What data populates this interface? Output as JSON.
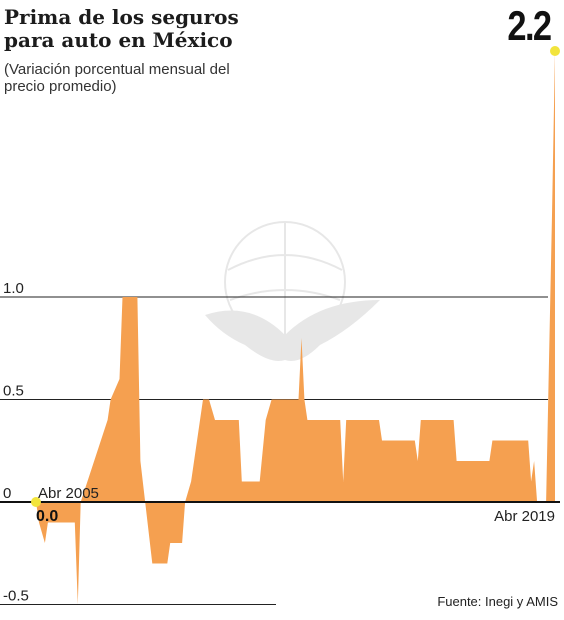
{
  "header": {
    "title": "Prima de los seguros para auto en México",
    "subtitle": "(Variación porcentual mensual del precio promedio)",
    "last_value": "2.2"
  },
  "footer": {
    "source": "Fuente: Inegi y AMIS"
  },
  "colors": {
    "fill": "#F5A050",
    "marker": "#F2E43C",
    "grid": "#222222",
    "axis": "#111111"
  },
  "chart_data": {
    "type": "area",
    "ylim": [
      -0.5,
      2.2
    ],
    "yticks": [
      {
        "value": 1.0,
        "label": "1.0"
      },
      {
        "value": 0.5,
        "label": "0.5"
      },
      {
        "value": 0,
        "label": "0"
      },
      {
        "value": -0.5,
        "label": "-0.5"
      }
    ],
    "start_label": "Abr 2005",
    "start_value_label": "0.0",
    "end_label": "Abr 2019",
    "series": [
      {
        "points": [
          [
            2005.25,
            0
          ],
          [
            2005.333,
            -0.1
          ],
          [
            2005.5,
            -0.2
          ],
          [
            2005.583,
            -0.1
          ],
          [
            2006.333,
            -0.1
          ],
          [
            2006.417,
            -0.5
          ],
          [
            2006.5,
            0
          ],
          [
            2007.25,
            0.4
          ],
          [
            2007.333,
            0.5
          ],
          [
            2007.583,
            0.6
          ],
          [
            2007.667,
            1.0
          ],
          [
            2008.083,
            1.0
          ],
          [
            2008.167,
            0.2
          ],
          [
            2008.5,
            -0.3
          ],
          [
            2008.917,
            -0.3
          ],
          [
            2009.0,
            -0.2
          ],
          [
            2009.333,
            -0.2
          ],
          [
            2009.417,
            0
          ],
          [
            2009.583,
            0.1
          ],
          [
            2009.917,
            0.5
          ],
          [
            2010.083,
            0.5
          ],
          [
            2010.25,
            0.4
          ],
          [
            2010.917,
            0.4
          ],
          [
            2011.0,
            0.1
          ],
          [
            2011.5,
            0.1
          ],
          [
            2011.667,
            0.4
          ],
          [
            2011.833,
            0.5
          ],
          [
            2012.583,
            0.5
          ],
          [
            2012.667,
            0.8
          ],
          [
            2012.75,
            0.5
          ],
          [
            2012.833,
            0.4
          ],
          [
            2013.75,
            0.4
          ],
          [
            2013.833,
            0.1
          ],
          [
            2013.917,
            0.4
          ],
          [
            2014.833,
            0.4
          ],
          [
            2014.917,
            0.3
          ],
          [
            2015.833,
            0.3
          ],
          [
            2015.917,
            0.2
          ],
          [
            2016.0,
            0.4
          ],
          [
            2016.917,
            0.4
          ],
          [
            2017.0,
            0.2
          ],
          [
            2017.917,
            0.2
          ],
          [
            2018.0,
            0.3
          ],
          [
            2019.0,
            0.3
          ],
          [
            2019.083,
            0.1
          ],
          [
            2019.167,
            0.2
          ],
          [
            2019.25,
            0
          ],
          [
            2019.5,
            0
          ],
          [
            2019.667,
            1.4
          ],
          [
            2019.75,
            2.2
          ]
        ]
      }
    ]
  }
}
